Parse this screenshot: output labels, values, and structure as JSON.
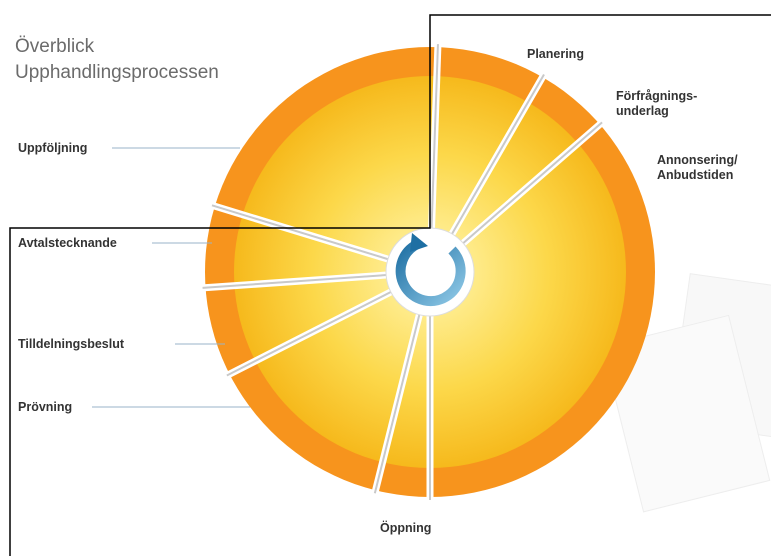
{
  "header": {
    "title": [
      "Överblick",
      "Upphandlingsprocessen"
    ]
  },
  "steps": [
    {
      "lines": [
        "Planering"
      ]
    },
    {
      "lines": [
        "Förfrågnings-",
        "underlag"
      ]
    },
    {
      "lines": [
        "Annonsering/",
        "Anbudstiden"
      ]
    },
    {
      "lines": [
        "Öppning"
      ]
    },
    {
      "lines": [
        "Prövning"
      ]
    },
    {
      "lines": [
        "Tilldelningsbeslut"
      ]
    },
    {
      "lines": [
        "Avtalstecknande"
      ]
    },
    {
      "lines": [
        "Uppföljning"
      ]
    }
  ]
}
